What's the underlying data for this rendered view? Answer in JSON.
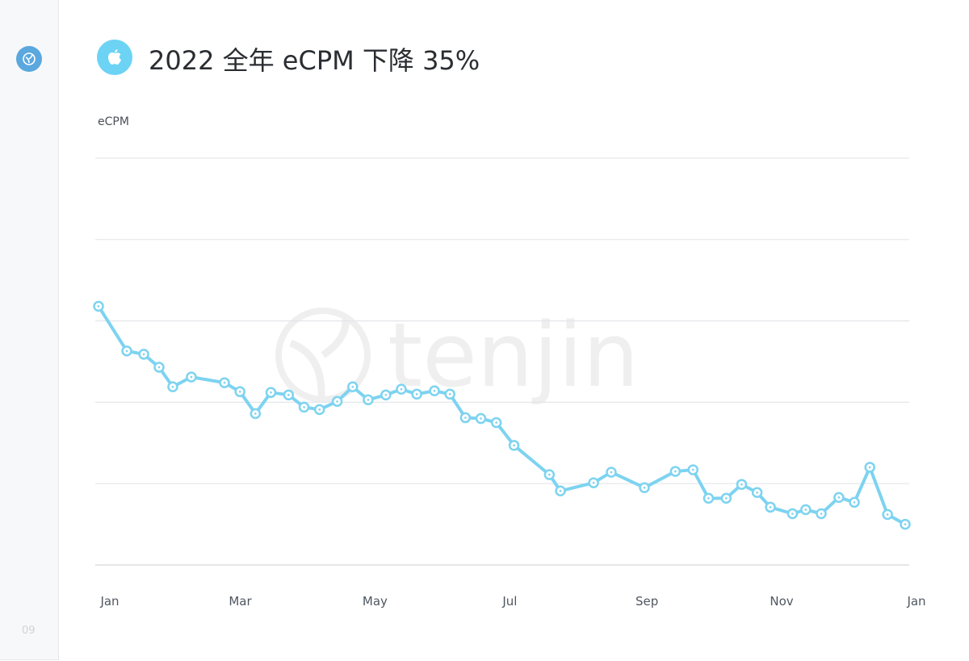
{
  "header": {
    "title": "2022 全年 eCPM 下降 35%",
    "page_number": "09",
    "watermark": "tenjin"
  },
  "chart_data": {
    "type": "line",
    "title": "2022 全年 eCPM 下降 35%",
    "ylabel": "eCPM",
    "xlabel": "",
    "xlim": [
      0,
      365
    ],
    "ylim": [
      0,
      5
    ],
    "grid": true,
    "x_ticks": [
      {
        "label": "Jan",
        "x": 0
      },
      {
        "label": "Mar",
        "x": 59
      },
      {
        "label": "May",
        "x": 120
      },
      {
        "label": "Jul",
        "x": 181
      },
      {
        "label": "Sep",
        "x": 243
      },
      {
        "label": "Nov",
        "x": 304
      },
      {
        "label": "Jan",
        "x": 365
      }
    ],
    "series": [
      {
        "name": "eCPM",
        "color": "#7dd3f0",
        "x": [
          0,
          12.8,
          20.5,
          27.4,
          33.6,
          42,
          57,
          64,
          71,
          78,
          86,
          93,
          100,
          108,
          115,
          122,
          130,
          137,
          144,
          152,
          159,
          166,
          173,
          180,
          188,
          204,
          209,
          224,
          232,
          247,
          261,
          269,
          276,
          284,
          291,
          298,
          304,
          314,
          320,
          327,
          335,
          342,
          349,
          357,
          365
        ],
        "values": [
          3.18,
          2.63,
          2.59,
          2.43,
          2.19,
          2.31,
          2.24,
          2.13,
          1.86,
          2.12,
          2.09,
          1.94,
          1.91,
          2.01,
          2.19,
          2.03,
          2.09,
          2.16,
          2.1,
          2.14,
          2.1,
          1.81,
          1.8,
          1.75,
          1.47,
          1.11,
          0.91,
          1.01,
          1.14,
          0.95,
          1.15,
          1.17,
          0.82,
          0.82,
          0.99,
          0.89,
          0.71,
          0.63,
          0.68,
          0.63,
          0.83,
          0.77,
          1.2,
          0.62,
          0.5
        ]
      }
    ]
  }
}
